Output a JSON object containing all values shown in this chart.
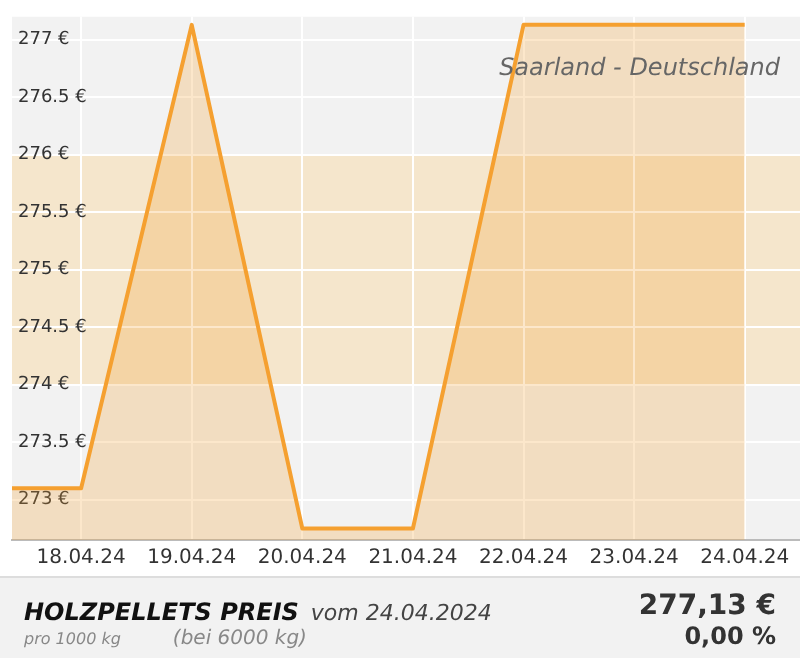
{
  "chart_data": {
    "type": "area",
    "title": "HOLZPELLETS PREIS",
    "subtitle": "vom 24.04.2024",
    "annotations": [
      "Saarland - Deutschland",
      "pro 1000 kg",
      "(bei 6000 kg)",
      "277,13 €",
      "0,00 %"
    ],
    "x": [
      "2024-04-17T09:00",
      "2024-04-18",
      "2024-04-19",
      "2024-04-20",
      "2024-04-21",
      "2024-04-22",
      "2024-04-23",
      "2024-04-24"
    ],
    "series": [
      {
        "color": "#f5a030",
        "values": [
          273.1,
          273.1,
          277.13,
          272.75,
          272.75,
          277.13,
          277.13,
          277.13
        ]
      }
    ],
    "xlim": [
      "2024-04-17T09:00",
      "2024-04-24T12:00"
    ],
    "xticks": [
      {
        "value": "2024-04-18",
        "label": "18.04.24"
      },
      {
        "value": "2024-04-19",
        "label": "19.04.24"
      },
      {
        "value": "2024-04-20",
        "label": "20.04.24"
      },
      {
        "value": "2024-04-21",
        "label": "21.04.24"
      },
      {
        "value": "2024-04-22",
        "label": "22.04.24"
      },
      {
        "value": "2024-04-23",
        "label": "23.04.24"
      },
      {
        "value": "2024-04-24",
        "label": "24.04.24"
      }
    ],
    "ylim": [
      272.65,
      277.2
    ],
    "yticks": [
      {
        "value": 273,
        "label": "273 €"
      },
      {
        "value": 273.5,
        "label": "273.5 €"
      },
      {
        "value": 274,
        "label": "274 €"
      },
      {
        "value": 274.5,
        "label": "274.5 €"
      },
      {
        "value": 275,
        "label": "275 €"
      },
      {
        "value": 275.5,
        "label": "275.5 €"
      },
      {
        "value": 276,
        "label": "276 €"
      },
      {
        "value": 276.5,
        "label": "276.5 €"
      },
      {
        "value": 277,
        "label": "277 €"
      }
    ],
    "bands": [
      {
        "axis": "y",
        "from": 274,
        "to": 276,
        "color": "#f5e6cc"
      }
    ],
    "grid": true,
    "legend": false,
    "marker": "none",
    "line_style": "solid"
  }
}
